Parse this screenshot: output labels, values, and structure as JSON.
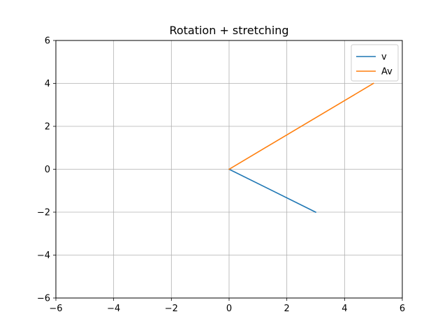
{
  "chart_data": {
    "type": "line",
    "title": "Rotation + stretching",
    "xlabel": "",
    "ylabel": "",
    "xlim": [
      -6,
      6
    ],
    "ylim": [
      -6,
      6
    ],
    "xticks": [
      -6,
      -4,
      -2,
      0,
      2,
      4,
      6
    ],
    "yticks": [
      -6,
      -4,
      -2,
      0,
      2,
      4,
      6
    ],
    "xtick_labels": [
      "−6",
      "−4",
      "−2",
      "0",
      "2",
      "4",
      "6"
    ],
    "ytick_labels": [
      "−6",
      "−4",
      "−2",
      "0",
      "2",
      "4",
      "6"
    ],
    "grid": true,
    "legend_position": "top-right",
    "series": [
      {
        "name": "v",
        "color": "#1f77b4",
        "x": [
          0,
          3
        ],
        "y": [
          0,
          -2
        ]
      },
      {
        "name": "Av",
        "color": "#ff7f0e",
        "x": [
          0,
          5
        ],
        "y": [
          0,
          4
        ]
      }
    ]
  }
}
